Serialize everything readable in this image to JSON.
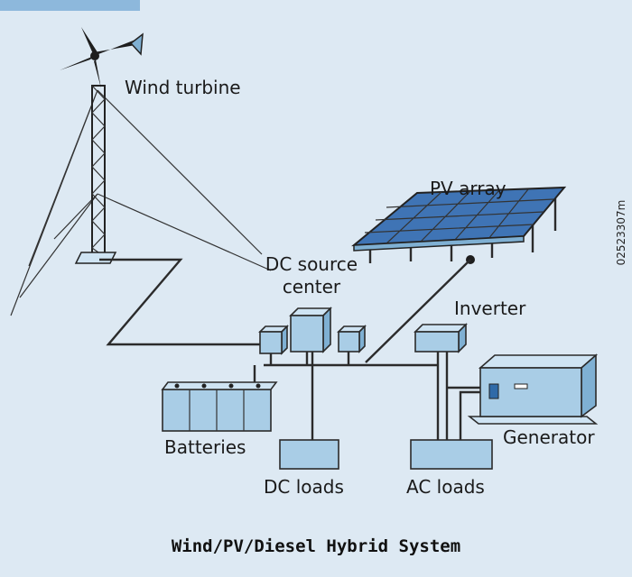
{
  "nodes": [
    {
      "label": "Wind turbine"
    },
    {
      "label": "PV array"
    },
    {
      "label": [
        "DC source",
        "center"
      ]
    },
    {
      "label": "Inverter"
    },
    {
      "label": "Batteries"
    },
    {
      "label": "DC loads"
    },
    {
      "label": "AC loads"
    },
    {
      "label": "Generator"
    }
  ],
  "caption": "Wind/PV/Diesel Hybrid System",
  "side_code": "02523307m"
}
